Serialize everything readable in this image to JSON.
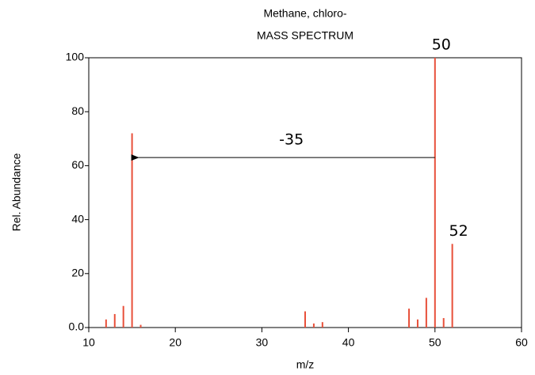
{
  "chart_data": {
    "type": "bar",
    "title": "Methane, chloro-",
    "subtitle": "MASS SPECTRUM",
    "x_label": "m/z",
    "y_label": "Rel. Abundance",
    "x": [
      12,
      13,
      14,
      15,
      16,
      35,
      36,
      37,
      47,
      48,
      49,
      50,
      51,
      52
    ],
    "values": [
      3,
      5,
      8,
      72,
      1,
      6,
      1.5,
      2,
      7,
      3,
      11,
      100,
      3.5,
      31
    ],
    "color": "#e8503a",
    "xlim": [
      10,
      60
    ],
    "xticks": [
      10,
      20,
      30,
      40,
      50,
      60
    ],
    "ylim": [
      0,
      100
    ],
    "yticks": [
      {
        "value": 0,
        "label": "0.0"
      },
      20,
      40,
      60,
      80,
      100
    ],
    "annotations": [
      {
        "text": "50",
        "x": 50,
        "y": 100
      },
      {
        "text": "52",
        "x": 52,
        "y": 31
      },
      {
        "text": "-35",
        "x1": 50,
        "x2": 15,
        "y": 63
      }
    ]
  }
}
